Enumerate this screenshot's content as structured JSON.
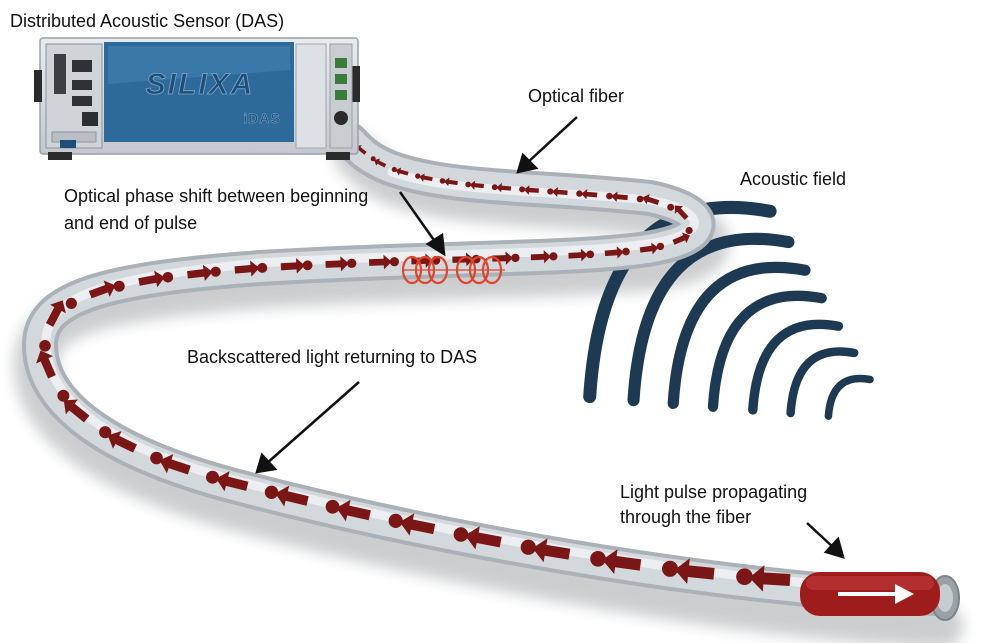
{
  "device": {
    "title": "Distributed Acoustic Sensor (DAS)",
    "brand": "SILIXA",
    "model": "iDAS",
    "panel_color": "#2d6a9a"
  },
  "labels": {
    "optical_fiber": "Optical fiber",
    "acoustic_field": "Acoustic field",
    "phase_shift_line1": "Optical phase shift between beginning",
    "phase_shift_line2": "and end of pulse",
    "backscatter": "Backscattered light returning to DAS",
    "pulse_line1": "Light pulse propagating",
    "pulse_line2": "through the fiber"
  },
  "colors": {
    "fiber": "#d4d9dd",
    "arrows": "#7a1616",
    "pulse": "#a41f1f",
    "wavefronts": "#1e3a52",
    "phase_coils": "#e0442c"
  },
  "acoustic_field": {
    "wavefront_count": 7
  }
}
